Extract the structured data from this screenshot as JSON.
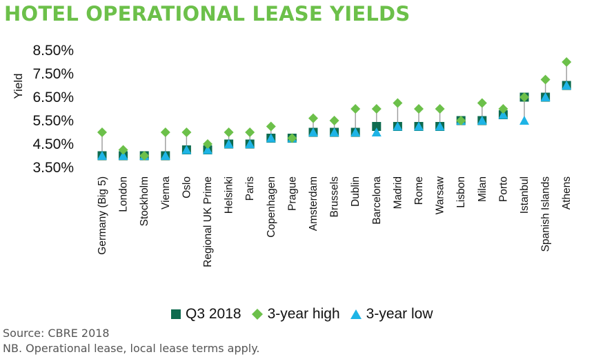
{
  "title": "HOTEL OPERATIONAL LEASE YIELDS",
  "source": "Source: CBRE 2018",
  "note": "NB. Operational lease, local lease terms apply.",
  "colors": {
    "title": "#6cc04a",
    "q3": "#0e6b4f",
    "high": "#6cc04a",
    "low": "#1eb4e6",
    "whisker": "#9a9a9a"
  },
  "chart_data": {
    "type": "scatter",
    "title": "HOTEL OPERATIONAL LEASE YIELDS",
    "xlabel": "",
    "ylabel": "Yield",
    "ylim": [
      3.5,
      8.5
    ],
    "yticks": [
      "8.50%",
      "7.50%",
      "6.50%",
      "5.50%",
      "4.50%",
      "3.50%"
    ],
    "ytick_values": [
      8.5,
      7.5,
      6.5,
      5.5,
      4.5,
      3.5
    ],
    "categories": [
      "Germany (Big 5)",
      "London",
      "Stockholm",
      "Vienna",
      "Oslo",
      "Regional UK Prime",
      "Helsinki",
      "Paris",
      "Copenhagen",
      "Prague",
      "Amsterdam",
      "Brussels",
      "Dublin",
      "Barcelona",
      "Madrid",
      "Rome",
      "Warsaw",
      "Lisbon",
      "Milan",
      "Porto",
      "Istanbul",
      "Spanish Islands",
      "Athens"
    ],
    "series": [
      {
        "name": "Q3 2018",
        "marker": "square",
        "values": [
          4.0,
          4.0,
          4.0,
          4.0,
          4.25,
          4.25,
          4.5,
          4.5,
          4.75,
          4.75,
          5.0,
          5.0,
          5.0,
          5.25,
          5.25,
          5.25,
          5.25,
          5.5,
          5.5,
          5.75,
          6.5,
          6.5,
          7.0
        ]
      },
      {
        "name": "3-year high",
        "marker": "diamond",
        "values": [
          5.0,
          4.25,
          4.0,
          5.0,
          5.0,
          4.5,
          5.0,
          5.0,
          5.25,
          4.75,
          5.6,
          5.5,
          6.0,
          6.0,
          6.25,
          6.0,
          6.0,
          5.5,
          6.25,
          6.0,
          6.5,
          7.25,
          8.0
        ]
      },
      {
        "name": "3-year low",
        "marker": "triangle",
        "values": [
          4.0,
          4.0,
          4.0,
          4.0,
          4.25,
          4.25,
          4.5,
          4.5,
          4.75,
          4.75,
          5.0,
          5.0,
          5.0,
          5.0,
          5.25,
          5.25,
          5.25,
          5.5,
          5.5,
          5.75,
          5.5,
          6.5,
          7.0
        ]
      }
    ],
    "legend": "bottom-center"
  }
}
